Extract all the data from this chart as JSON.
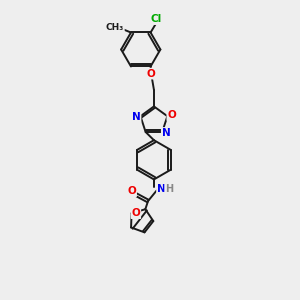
{
  "bg_color": "#eeeeee",
  "atom_colors": {
    "C": "#1a1a1a",
    "N": "#0000ee",
    "O": "#ee0000",
    "Cl": "#00aa00",
    "H": "#888888"
  },
  "bond_color": "#1a1a1a",
  "bond_width": 1.4,
  "dbo": 0.055,
  "xlim": [
    0,
    10
  ],
  "ylim": [
    0,
    15
  ]
}
